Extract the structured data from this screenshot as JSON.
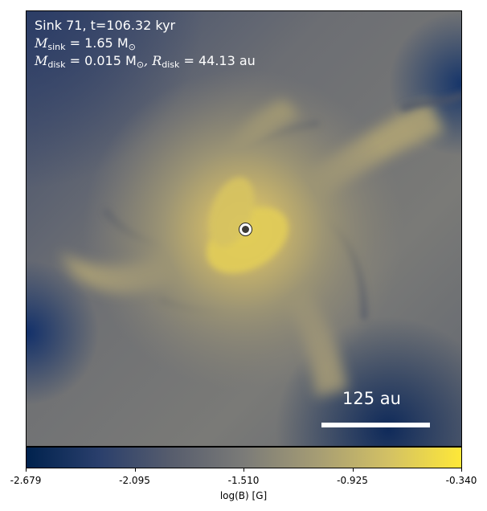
{
  "annotation": {
    "line1": "Sink 71, t=106.32 kyr",
    "msink_label": "M",
    "msink_sub": "sink",
    "msink_value": " = 1.65 M",
    "msink_unit_sub": "⊙",
    "mdisk_label": "M",
    "mdisk_sub": "disk",
    "mdisk_value": " = 0.015 M",
    "mdisk_unit_sub": "⊙",
    "rdisk_label": ", R",
    "rdisk_sub": "disk",
    "rdisk_value": " = 44.13 au"
  },
  "scale_bar": {
    "label": "125 au"
  },
  "colorbar": {
    "label": "log(B) [G]",
    "ticks": [
      "-2.679",
      "-2.095",
      "-1.510",
      "-0.925",
      "-0.340"
    ],
    "colormap": "cividis",
    "colors": [
      "#00224e",
      "#2a3f6c",
      "#575d6d",
      "#7b7b78",
      "#a59c74",
      "#d3c164",
      "#fee838"
    ]
  }
}
